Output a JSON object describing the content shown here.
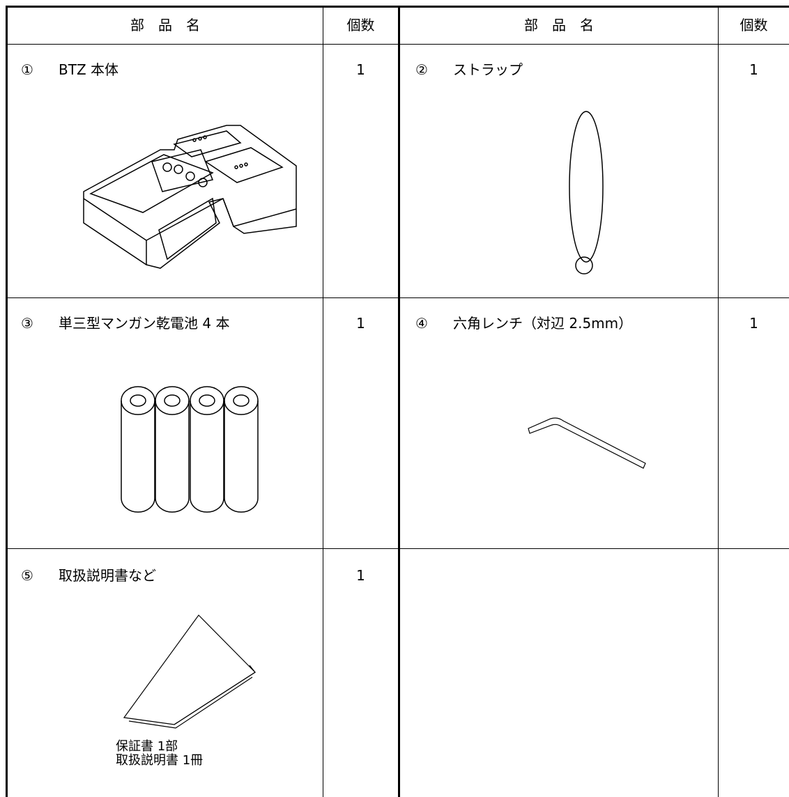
{
  "header": {
    "part_name": "部　品　名",
    "count": "個数"
  },
  "items": [
    {
      "marker": "①",
      "name": "BTZ 本体",
      "count": 1
    },
    {
      "marker": "②",
      "name": "ストラップ",
      "count": 1
    },
    {
      "marker": "③",
      "name": "単三型マンガン乾電池 4 本",
      "count": 1
    },
    {
      "marker": "④",
      "name": "六角レンチ（対辺 2.5mm）",
      "count": 1
    },
    {
      "marker": "⑤",
      "name": "取扱説明書など",
      "count": 1,
      "captions": [
        "保証書 1部",
        "取扱説明書 1冊"
      ]
    }
  ]
}
